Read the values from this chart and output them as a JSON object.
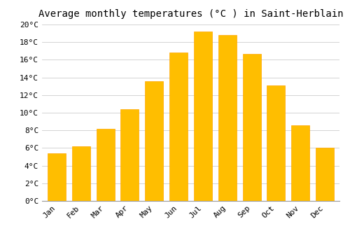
{
  "title": "Average monthly temperatures (°C ) in Saint-Herblain",
  "months": [
    "Jan",
    "Feb",
    "Mar",
    "Apr",
    "May",
    "Jun",
    "Jul",
    "Aug",
    "Sep",
    "Oct",
    "Nov",
    "Dec"
  ],
  "values": [
    5.4,
    6.2,
    8.2,
    10.4,
    13.6,
    16.8,
    19.2,
    18.8,
    16.7,
    13.1,
    8.6,
    6.0
  ],
  "bar_color": "#FFBE00",
  "bar_edge_color": "#FFA500",
  "background_color": "#FFFFFF",
  "grid_color": "#CCCCCC",
  "ylim": [
    0,
    20
  ],
  "ytick_step": 2,
  "title_fontsize": 10,
  "tick_fontsize": 8,
  "font_family": "monospace",
  "bar_width": 0.75
}
